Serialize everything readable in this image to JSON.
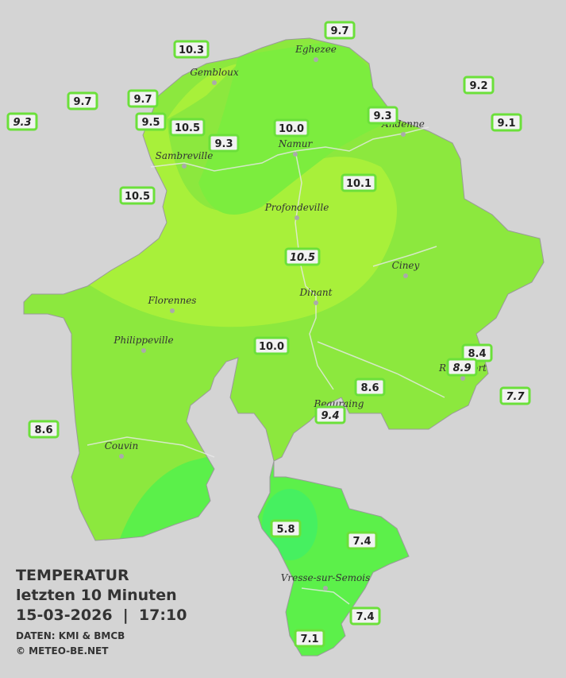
{
  "map": {
    "cities": [
      "Eghezee",
      "Gembloux",
      "Andenne",
      "Namur",
      "Sambreville",
      "Profondeville",
      "Ciney",
      "Dinant",
      "Florennes",
      "Philippeville",
      "Rochefort",
      "Beauraing",
      "Couvin",
      "Vresse-sur-Semois"
    ],
    "stations": [
      "10.3",
      "9.7",
      "9.2",
      "9.7",
      "9.7",
      "9.3",
      "9.5",
      "10.5",
      "10.0",
      "9.3",
      "9.1",
      "9.3",
      "10.5",
      "10.1",
      "10.5",
      "10.0",
      "8.4",
      "8.9",
      "8.6",
      "7.7",
      "9.4",
      "8.6",
      "5.8",
      "7.4",
      "7.4",
      "7.1"
    ]
  },
  "legend": {
    "title": "TEMPERATUR",
    "period": "letzten 10 Minuten",
    "timestamp": "15-03-2026  |  17:10",
    "source": "DATEN: KMI & BMCB",
    "copyright": "© METEO-BE.NET"
  }
}
